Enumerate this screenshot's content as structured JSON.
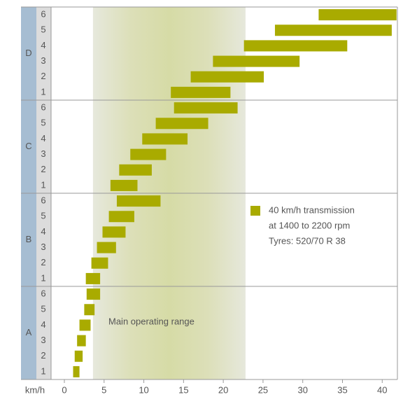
{
  "chart_data": {
    "type": "range_bar",
    "groups": [
      {
        "label": "A",
        "categories": [
          "1",
          "2",
          "3",
          "4",
          "5",
          "6"
        ]
      },
      {
        "label": "B",
        "categories": [
          "1",
          "2",
          "3",
          "4",
          "5",
          "6"
        ]
      },
      {
        "label": "C",
        "categories": [
          "1",
          "2",
          "3",
          "4",
          "5",
          "6"
        ]
      },
      {
        "label": "D",
        "categories": [
          "1",
          "2",
          "3",
          "4",
          "5",
          "6"
        ]
      }
    ],
    "series": [
      {
        "name": "40 km/h transmission",
        "color": "#a9ab00",
        "values": [
          [
            1.1,
            1.9
          ],
          [
            1.3,
            2.3
          ],
          [
            1.6,
            2.7
          ],
          [
            1.9,
            3.3
          ],
          [
            2.5,
            3.8
          ],
          [
            2.8,
            4.5
          ],
          [
            2.7,
            4.5
          ],
          [
            3.4,
            5.5
          ],
          [
            4.1,
            6.5
          ],
          [
            4.8,
            7.7
          ],
          [
            5.6,
            8.8
          ],
          [
            6.6,
            12.1
          ],
          [
            5.8,
            9.2
          ],
          [
            6.9,
            11.0
          ],
          [
            8.3,
            12.8
          ],
          [
            9.8,
            15.5
          ],
          [
            11.5,
            18.1
          ],
          [
            13.8,
            21.8
          ],
          [
            13.4,
            20.9
          ],
          [
            15.9,
            25.1
          ],
          [
            18.7,
            29.6
          ],
          [
            22.6,
            35.6
          ],
          [
            26.5,
            41.2
          ],
          [
            32.0,
            41.8
          ]
        ]
      }
    ],
    "legend_notes": [
      "at 1400 to 2200 rpm",
      "Tyres: 520/70 R 38"
    ],
    "annotation": {
      "text": "Main operating range",
      "range": [
        3.6,
        22.8
      ]
    },
    "x_label": "km/h",
    "xlim": [
      0,
      42
    ],
    "xticks": [
      0,
      5,
      10,
      15,
      20,
      25,
      30,
      35,
      40
    ]
  }
}
